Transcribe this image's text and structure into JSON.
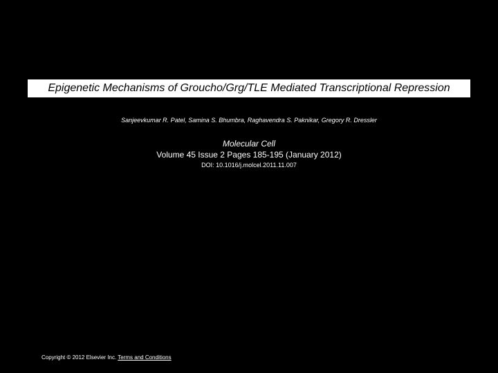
{
  "title": "Epigenetic Mechanisms of Groucho/Grg/TLE Mediated Transcriptional Repression",
  "authors": "Sanjeevkumar R. Patel, Samina S. Bhumbra, Raghavendra S. Paknikar, Gregory R. Dressler",
  "journal": "Molecular Cell",
  "citation": "Volume 45 Issue 2 Pages 185-195 (January 2012)",
  "doi": "DOI: 10.1016/j.molcel.2011.11.007",
  "copyright": "Copyright © 2012 Elsevier Inc.",
  "terms_label": "Terms and Conditions",
  "styling": {
    "background_color": "#000000",
    "text_color": "#ffffff",
    "title_bg_color": "#ffffff",
    "title_text_color": "#000000",
    "title_fontsize": 16,
    "authors_fontsize": 9,
    "journal_fontsize": 12,
    "citation_fontsize": 12,
    "doi_fontsize": 9,
    "footer_fontsize": 8,
    "title_font_style": "italic",
    "authors_font_style": "italic",
    "journal_font_style": "italic"
  }
}
